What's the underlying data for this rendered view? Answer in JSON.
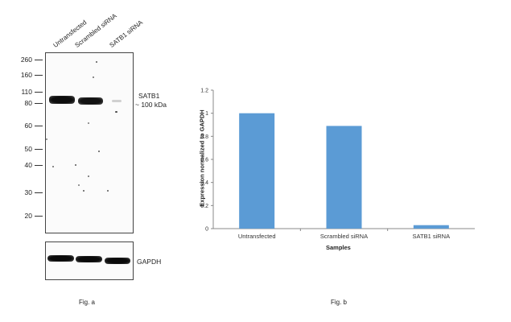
{
  "western_blot": {
    "lane_labels": [
      "Untransfected",
      "Scrambled siRNA",
      "SATB1 siRNA"
    ],
    "mw_markers": [
      "260",
      "160",
      "110",
      "80",
      "60",
      "50",
      "40",
      "30",
      "20"
    ],
    "band_label_line1": "SATB1",
    "band_label_line2": "~ 100 kDa",
    "control_label": "GAPDH",
    "caption": "Fig. a"
  },
  "chart_data": {
    "type": "bar",
    "categories": [
      "Untransfected",
      "Scrambled siRNA",
      "SATB1 siRNA"
    ],
    "values": [
      1.0,
      0.89,
      0.03
    ],
    "title": "",
    "xlabel": "Samples",
    "ylabel": "Expression normalized to GAPDH",
    "ylim": [
      0,
      1.2
    ],
    "yticks": [
      "0",
      "0.2",
      "0.4",
      "0.6",
      "0.8",
      "1",
      "1.2"
    ],
    "bar_color": "#5b9bd5",
    "grid": false,
    "caption": "Fig. b"
  }
}
